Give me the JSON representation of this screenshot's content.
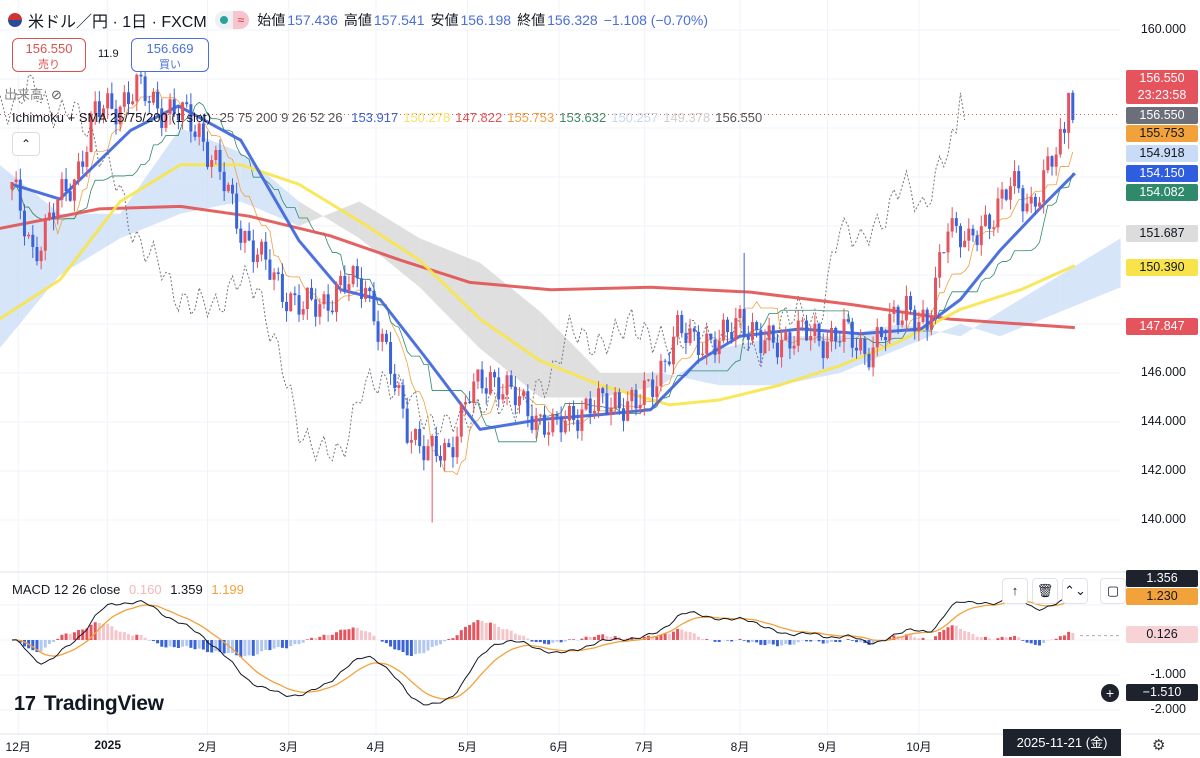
{
  "header": {
    "symbol": "米ドル／円 · 1日 · FXCM",
    "wave_icon": "≈",
    "open_label": "始値",
    "open": "157.436",
    "high_label": "高値",
    "high": "157.541",
    "low_label": "安値",
    "low": "156.198",
    "close_label": "終値",
    "close": "156.328",
    "change": "−1.108 (−0.70%)"
  },
  "trade": {
    "sell_price": "156.550",
    "sell_label": "売り",
    "spread": "11.9",
    "buy_price": "156.669",
    "buy_label": "買い"
  },
  "volume": {
    "label": "出来高"
  },
  "indicator": {
    "name": "Ichimoku + SMA 25/75/200 (1 slot)",
    "params": "25 75 200 9 26 52 26",
    "values": [
      {
        "v": "153.917",
        "color": "#3b63d9"
      },
      {
        "v": "150.278",
        "color": "#f5e36b"
      },
      {
        "v": "147.822",
        "color": "#e05252"
      },
      {
        "v": "155.753",
        "color": "#f0a040"
      },
      {
        "v": "153.632",
        "color": "#3f8a6a"
      },
      {
        "v": "150.257",
        "color": "#c8d8ef"
      },
      {
        "v": "149.378",
        "color": "#d0d0d0"
      },
      {
        "v": "156.550",
        "color": "#555555"
      }
    ]
  },
  "collapse_icon": "⌃",
  "price_axis": {
    "ticks": [
      "160.000",
      "146.000",
      "144.000",
      "142.000",
      "140.000"
    ],
    "tick_values": [
      160,
      146,
      144,
      142,
      140
    ]
  },
  "price_labels": [
    {
      "text": "156.550",
      "sub": "23:23:58",
      "value": 156.55,
      "bg": "#e5535d",
      "fg": "#fff"
    },
    {
      "text": "156.550",
      "value": 156.55,
      "bg": "#6b6f7a",
      "fg": "#fff"
    },
    {
      "text": "155.753",
      "value": 155.753,
      "bg": "#f2a23a",
      "fg": "#131722"
    },
    {
      "text": "154.918",
      "value": 154.918,
      "bg": "#c9dcf7",
      "fg": "#131722"
    },
    {
      "text": "154.150",
      "value": 154.15,
      "bg": "#2f5de0",
      "fg": "#fff"
    },
    {
      "text": "154.082",
      "value": 154.082,
      "bg": "#2f8a6b",
      "fg": "#fff"
    },
    {
      "text": "151.687",
      "value": 151.687,
      "bg": "#dcdcdc",
      "fg": "#131722"
    },
    {
      "text": "150.390",
      "value": 150.39,
      "bg": "#f8e44a",
      "fg": "#131722"
    },
    {
      "text": "147.847",
      "value": 147.847,
      "bg": "#e5535d",
      "fg": "#fff"
    }
  ],
  "macd": {
    "name": "MACD 12 26 close",
    "hist": "0.160",
    "macd": "1.359",
    "signal": "1.199",
    "ticks": [
      "-1.000",
      "-2.000"
    ],
    "tick_values": [
      -1,
      -2
    ],
    "labels": [
      {
        "text": "1.356",
        "value": 1.356,
        "bg": "#1e222d",
        "fg": "#fff"
      },
      {
        "text": "1.230",
        "value": 1.23,
        "bg": "#f2a23a",
        "fg": "#131722"
      },
      {
        "text": "0.126",
        "value": 0.126,
        "bg": "#f7d3d6",
        "fg": "#131722"
      },
      {
        "text": "−1.510",
        "value": -1.51,
        "bg": "#1e222d",
        "fg": "#fff"
      }
    ],
    "tools": [
      "↑",
      "🗑",
      "⌃⌄",
      "▢"
    ]
  },
  "x_axis": {
    "labels": [
      "12月",
      "2025",
      "2月",
      "3月",
      "4月",
      "5月",
      "6月",
      "7月",
      "8月",
      "9月",
      "10月"
    ],
    "label_weeks": [
      0.3,
      4.6,
      9.4,
      13.3,
      17.5,
      21.9,
      26.3,
      30.4,
      35,
      39.2,
      43.6
    ],
    "current_date": "2025-11-21 (金)"
  },
  "brand": "TradingView",
  "colors": {
    "up": "#e5535d",
    "down": "#3b63d9",
    "sma25": "#3b63d9",
    "sma75": "#f8e44a",
    "sma200": "#e05252",
    "cloud_bull": "#c9dcf7",
    "cloud_bear": "#d4d4d4",
    "macd": "#131722",
    "signal": "#f2a23a"
  },
  "chart_data": {
    "type": "candlestick",
    "title": "USD/JPY daily FXCM",
    "x_unit": "weeks from 2024-11-29",
    "ylim": [
      139.2,
      161
    ],
    "weekly_close": [
      153.5,
      151.0,
      152.5,
      154.0,
      156.5,
      157.0,
      157.5,
      157.0,
      156.5,
      156.0,
      154.0,
      152.0,
      150.5,
      149.5,
      148.5,
      149.0,
      149.5,
      149.8,
      146.5,
      144.0,
      142.5,
      143.0,
      145.0,
      146.0,
      145.0,
      144.5,
      143.5,
      144.5,
      144.5,
      145.0,
      144.5,
      146.0,
      147.5,
      147.5,
      147.0,
      148.5,
      147.0,
      147.5,
      147.5,
      147.5,
      147.5,
      147.0,
      147.5,
      149.0,
      147.5,
      152.5,
      151.0,
      152.5,
      153.5,
      153.0,
      154.5,
      156.5
    ],
    "last_candle": {
      "open": 157.436,
      "high": 157.541,
      "low": 156.198,
      "close": 156.328
    },
    "extremes": [
      {
        "week": 20.2,
        "low": 139.9
      },
      {
        "week": 35.2,
        "high": 150.9
      },
      {
        "week": 6.2,
        "high": 158.8
      }
    ],
    "sma25": [
      [
        0,
        153.7
      ],
      [
        2.3,
        153.1
      ],
      [
        5.7,
        155.9
      ],
      [
        8,
        156.9
      ],
      [
        11,
        155.5
      ],
      [
        13.8,
        151.4
      ],
      [
        15.8,
        149.4
      ],
      [
        17.7,
        149
      ],
      [
        20,
        146.5
      ],
      [
        22.5,
        143.7
      ],
      [
        25.4,
        144.1
      ],
      [
        28.3,
        144.3
      ],
      [
        30.7,
        144.5
      ],
      [
        33,
        146.5
      ],
      [
        35,
        147.5
      ],
      [
        37.9,
        147.8
      ],
      [
        40.8,
        147.6
      ],
      [
        43.7,
        147.8
      ],
      [
        45.6,
        149
      ],
      [
        47.5,
        151
      ],
      [
        49.4,
        152.7
      ],
      [
        51.1,
        154.15
      ]
    ],
    "sma75": [
      [
        -0.6,
        148.2
      ],
      [
        2.3,
        149.8
      ],
      [
        5.2,
        153
      ],
      [
        8.1,
        154.5
      ],
      [
        11,
        154.5
      ],
      [
        13.8,
        153.7
      ],
      [
        16.7,
        152.2
      ],
      [
        19.6,
        150.6
      ],
      [
        22.5,
        148.2
      ],
      [
        25.4,
        146.5
      ],
      [
        28.3,
        145.5
      ],
      [
        31.6,
        144.7
      ],
      [
        34,
        144.9
      ],
      [
        36.9,
        145.5
      ],
      [
        39.8,
        146.3
      ],
      [
        42.7,
        147.3
      ],
      [
        45.6,
        148.6
      ],
      [
        48.5,
        149.4
      ],
      [
        51.1,
        150.39
      ]
    ],
    "sma200": [
      [
        -0.6,
        151.9
      ],
      [
        4.2,
        152.7
      ],
      [
        8.1,
        152.8
      ],
      [
        11.4,
        152.4
      ],
      [
        15.3,
        151.6
      ],
      [
        18.7,
        150.6
      ],
      [
        22,
        149.7
      ],
      [
        25.9,
        149.4
      ],
      [
        30.7,
        149.5
      ],
      [
        35.5,
        149.3
      ],
      [
        40.3,
        148.8
      ],
      [
        45.1,
        148.2
      ],
      [
        51.1,
        147.85
      ]
    ],
    "cloud": {
      "weeks": [
        -0.6,
        2.3,
        5.2,
        8.1,
        11,
        13.8,
        16.7,
        19.6,
        22.5,
        25.4,
        28.3,
        31.2,
        34,
        36.9,
        39.8,
        42.7,
        45.6,
        47.5,
        50.4,
        53.3
      ],
      "span_a": [
        154.5,
        152.5,
        152.5,
        156,
        155,
        153,
        151.5,
        149.5,
        147,
        145,
        145,
        145.5,
        147,
        147.5,
        147.5,
        148,
        147.5,
        148.5,
        150,
        151.5
      ],
      "span_b": [
        147,
        150,
        151.5,
        152.5,
        153,
        152,
        153,
        151.5,
        150.5,
        148.5,
        146,
        146,
        145.5,
        145.5,
        146,
        147,
        148,
        147.5,
        148.5,
        149.5
      ]
    }
  }
}
